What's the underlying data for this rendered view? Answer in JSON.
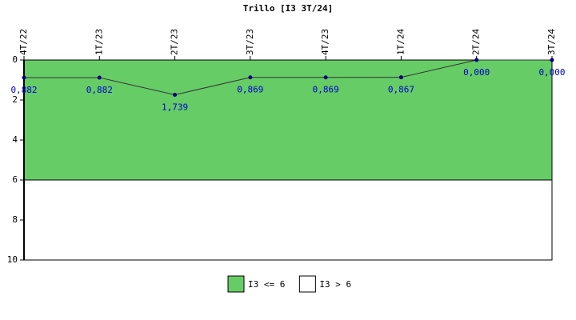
{
  "chart_data": {
    "type": "line",
    "title": "Trillo [I3 3T/24]",
    "categories": [
      "4T/22",
      "1T/23",
      "2T/23",
      "3T/23",
      "4T/23",
      "1T/24",
      "2T/24",
      "3T/24"
    ],
    "values": [
      0.882,
      0.882,
      1.739,
      0.869,
      0.869,
      0.867,
      0,
      0
    ],
    "value_labels": [
      "0,882",
      "0,882",
      "1,739",
      "0,869",
      "0,869",
      "0,867",
      "0,000",
      "0,000"
    ],
    "color": "#333333",
    "marker_color": "#000080",
    "ylim": [
      0,
      10
    ],
    "yticks": [
      0,
      2,
      4,
      6,
      8,
      10
    ],
    "y_reversed": true,
    "bands": [
      {
        "name": "I3 <= 6",
        "color": "#66cc66",
        "range": [
          0,
          6
        ]
      },
      {
        "name": "I3 > 6",
        "color": "#ffffff",
        "range": [
          6,
          10
        ]
      }
    ]
  }
}
